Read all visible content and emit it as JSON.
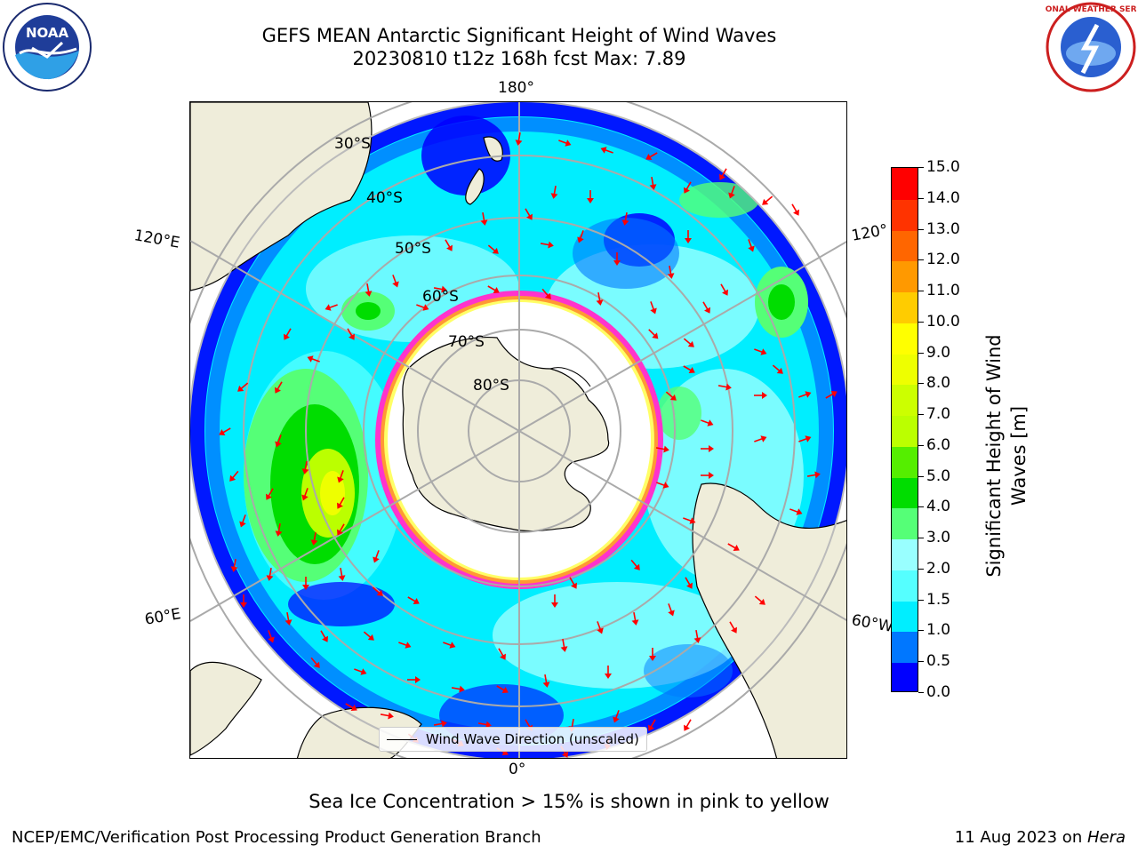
{
  "header": {
    "title_line1": "GEFS MEAN Antarctic Significant Height of Wind Waves",
    "title_line2": "20230810 t12z 168h fcst   Max: 7.89"
  },
  "logos": {
    "left": "noaa-logo",
    "right": "national-weather-service-logo",
    "left_text": "NOAA",
    "right_text": "NATIONAL WEATHER SERVICE"
  },
  "map": {
    "projection": "south-polar-stereographic",
    "longitude_labels": {
      "top": "180°",
      "bottom": "0°",
      "upper_left": "120°E",
      "lower_left": "60°E",
      "upper_right": "120°",
      "lower_right": "60°W"
    },
    "latitude_labels": [
      "30°S",
      "40°S",
      "50°S",
      "60°S",
      "70°S",
      "80°S"
    ],
    "legend_label": "Wind Wave Direction (unscaled)",
    "land_color": "#efedda",
    "arrow_color": "#ff0000",
    "sea_ice_colors": [
      "#ff33cc",
      "#ff9933",
      "#ffff66"
    ]
  },
  "colorbar": {
    "title_line1": "Significant Height of Wind",
    "title_line2": "Waves [m]",
    "ticks": [
      "0.0",
      "0.5",
      "1.0",
      "1.5",
      "2.0",
      "3.0",
      "4.0",
      "5.0",
      "6.0",
      "7.0",
      "8.0",
      "9.0",
      "10.0",
      "11.0",
      "12.0",
      "13.0",
      "14.0",
      "15.0"
    ],
    "colors": [
      "#0000ff",
      "#0077ff",
      "#00eeff",
      "#55ffff",
      "#99ffff",
      "#55ff77",
      "#00dd00",
      "#55ee00",
      "#bbff00",
      "#ccff00",
      "#eeff00",
      "#ffff00",
      "#ffcc00",
      "#ff9900",
      "#ff6600",
      "#ff3300",
      "#ff0000"
    ]
  },
  "footer": {
    "caption": "Sea Ice Concentration > 15% is shown in pink to yellow",
    "credit": "NCEP/EMC/Verification Post Processing Product Generation Branch",
    "date_text": "11 Aug 2023 on ",
    "machine": "Hera"
  }
}
